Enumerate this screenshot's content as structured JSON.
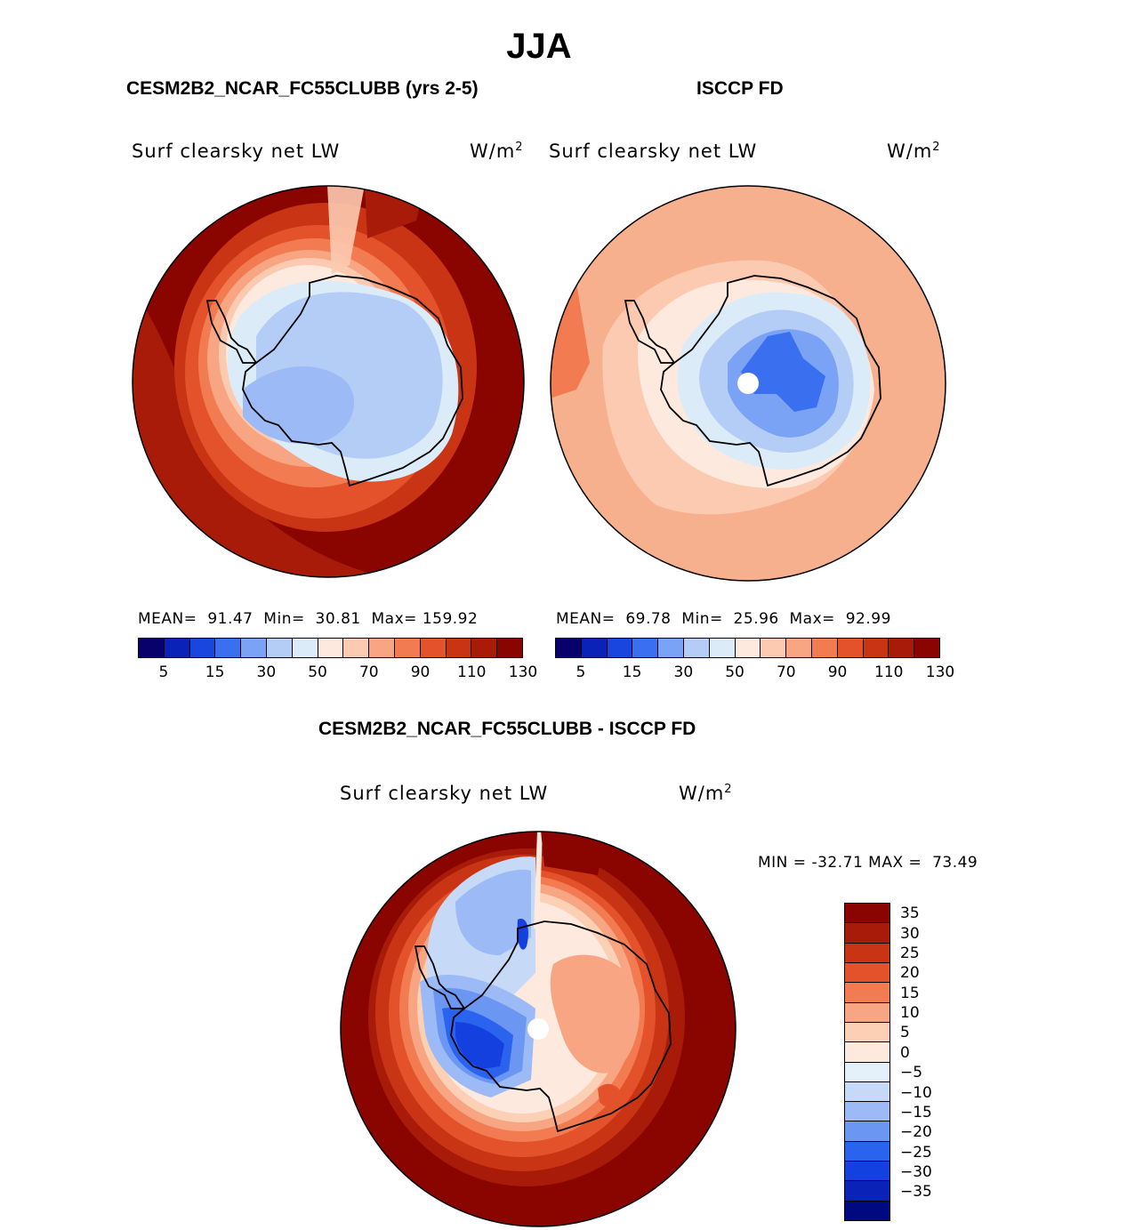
{
  "figure": {
    "season": "JJA",
    "panel_left_title": "CESM2B2_NCAR_FC55CLUBB (yrs 2-5)",
    "panel_right_title": "ISCCP FD",
    "panel_diff_title": "CESM2B2_NCAR_FC55CLUBB - ISCCP FD",
    "variable": "Surf clearsky net LW",
    "units": "W/m",
    "units_exp": "2"
  },
  "colors": {
    "abs_palette": [
      "#08006b",
      "#0a22b8",
      "#1a46e0",
      "#3a70f0",
      "#7aa2f5",
      "#b3cdf7",
      "#dcebf8",
      "#fde9de",
      "#fccab0",
      "#f7a582",
      "#f27b52",
      "#e3522a",
      "#c93415",
      "#a81b08",
      "#8a0400"
    ],
    "diff_palette": [
      "#000a80",
      "#0a22b8",
      "#1540e0",
      "#2a64ee",
      "#6b96f2",
      "#9bbaf6",
      "#c6daf7",
      "#e5f1fa",
      "#fde9de",
      "#fcd0b5",
      "#f7a582",
      "#f27b52",
      "#e3522a",
      "#c93415",
      "#a81b08",
      "#8a0400"
    ],
    "ocean_left": "#8a0400",
    "ocean_right": "#f7b08e",
    "ocean_diff": "#8a0400"
  },
  "chart_data": [
    {
      "type": "heatmap",
      "title": "CESM2B2_NCAR_FC55CLUBB (yrs 2-5)",
      "variable": "Surf clearsky net LW",
      "units": "W/m2",
      "projection": "south polar stereographic",
      "stats": {
        "MEAN": "91.47",
        "Min": "30.81",
        "Max": "159.92"
      },
      "colorbar_levels": [
        5,
        10,
        15,
        20,
        30,
        40,
        50,
        60,
        70,
        80,
        90,
        100,
        110,
        120,
        130
      ],
      "colorbar_ticks": [
        "5",
        "15",
        "30",
        "50",
        "70",
        "90",
        "110",
        "130"
      ]
    },
    {
      "type": "heatmap",
      "title": "ISCCP FD",
      "variable": "Surf clearsky net LW",
      "units": "W/m2",
      "projection": "south polar stereographic",
      "stats": {
        "MEAN": "69.78",
        "Min": "25.96",
        "Max": "92.99"
      },
      "colorbar_levels": [
        5,
        10,
        15,
        20,
        30,
        40,
        50,
        60,
        70,
        80,
        90,
        100,
        110,
        120,
        130
      ],
      "colorbar_ticks": [
        "5",
        "15",
        "30",
        "50",
        "70",
        "90",
        "110",
        "130"
      ]
    },
    {
      "type": "heatmap",
      "title": "CESM2B2_NCAR_FC55CLUBB - ISCCP FD",
      "variable": "Surf clearsky net LW",
      "units": "W/m2",
      "projection": "south polar stereographic",
      "stats": {
        "MIN": "-32.71",
        "MAX": "73.49"
      },
      "colorbar_levels": [
        35,
        30,
        25,
        20,
        15,
        10,
        5,
        0,
        -5,
        -10,
        -15,
        -20,
        -25,
        -30,
        -35
      ],
      "colorbar_ticks": [
        "35",
        "30",
        "25",
        "20",
        "15",
        "10",
        "5",
        "0",
        "−5",
        "−10",
        "−15",
        "−20",
        "−25",
        "−30",
        "−35"
      ]
    }
  ],
  "labels": {
    "mean_label": "MEAN=",
    "min_label": "Min=",
    "max_label": "Max=",
    "diff_min_label": "MIN =",
    "diff_max_label": "MAX ="
  }
}
